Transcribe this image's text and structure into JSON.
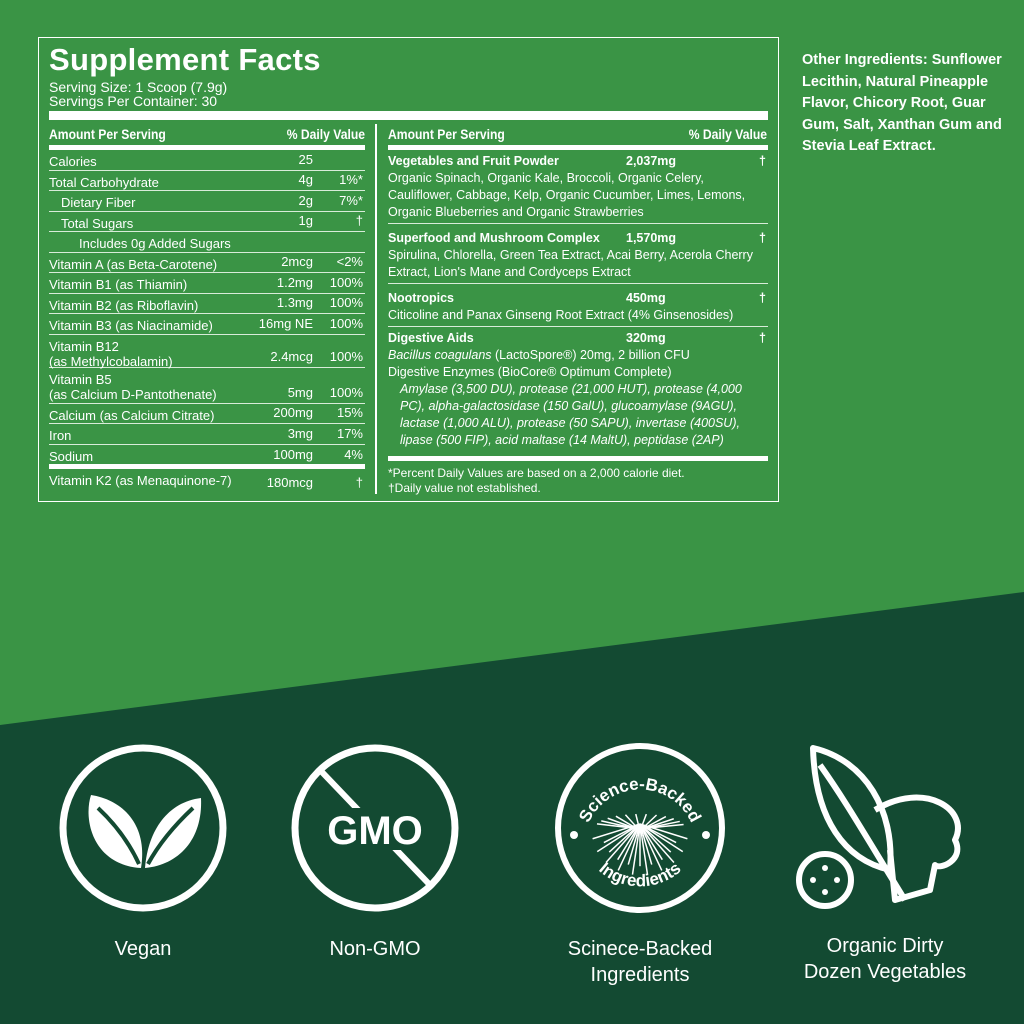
{
  "colors": {
    "top_bg": "#3a9445",
    "bottom_bg": "#134a32",
    "text": "#ffffff"
  },
  "facts": {
    "title": "Supplement Facts",
    "serving_size": "Serving Size: 1 Scoop (7.9g)",
    "servings_per_container": "Servings Per Container: 30",
    "header_amount": "Amount Per Serving",
    "header_dv": "% Daily Value",
    "left_rows": [
      {
        "name": "Calories",
        "amount": "25",
        "dv": ""
      },
      {
        "name": "Total Carbohydrate",
        "amount": "4g",
        "dv": "1%*"
      },
      {
        "name": "Dietary Fiber",
        "amount": "2g",
        "dv": "7%*"
      },
      {
        "name": "Total Sugars",
        "amount": "1g",
        "dv": "†"
      },
      {
        "name": "Includes 0g Added Sugars",
        "amount": "",
        "dv": ""
      },
      {
        "name": "Vitamin A (as Beta-Carotene)",
        "amount": "2mcg",
        "dv": "<2%"
      },
      {
        "name": "Vitamin B1 (as Thiamin)",
        "amount": "1.2mg",
        "dv": "100%"
      },
      {
        "name": "Vitamin B2 (as Riboflavin)",
        "amount": "1.3mg",
        "dv": "100%"
      },
      {
        "name": "Vitamin B3 (as Niacinamide)",
        "amount": "16mg NE",
        "dv": "100%"
      },
      {
        "name": "Vitamin B12\n(as Methylcobalamin)",
        "amount": "2.4mcg",
        "dv": "100%"
      },
      {
        "name": "Vitamin B5\n(as Calcium D-Pantothenate)",
        "amount": "5mg",
        "dv": "100%"
      },
      {
        "name": "Calcium (as Calcium Citrate)",
        "amount": "200mg",
        "dv": "15%"
      },
      {
        "name": "Iron",
        "amount": "3mg",
        "dv": "17%"
      },
      {
        "name": "Sodium",
        "amount": "100mg",
        "dv": "4%"
      },
      {
        "name": "Vitamin K2 (as Menaquinone-7)",
        "amount": "180mcg",
        "dv": "†"
      }
    ],
    "blends": [
      {
        "name": "Vegetables and Fruit Powder",
        "amount": "2,037mg",
        "dv": "†",
        "desc": "Organic Spinach, Organic Kale, Broccoli, Organic Celery, Cauliflower, Cabbage, Kelp, Organic Cucumber, Limes, Lemons, Organic Blueberries and Organic Strawberries"
      },
      {
        "name": "Superfood and Mushroom Complex",
        "amount": "1,570mg",
        "dv": "†",
        "desc": "Spirulina, Chlorella, Green Tea Extract, Acai Berry, Acerola Cherry Extract, Lion's Mane and Cordyceps Extract"
      },
      {
        "name": "Nootropics",
        "amount": "450mg",
        "dv": "†",
        "desc": "Citicoline and Panax Ginseng Root Extract (4% Ginsenosides)"
      },
      {
        "name": "Digestive Aids",
        "amount": "320mg",
        "dv": "†",
        "desc_italic": "Bacillus coagulans",
        "desc_rest": " (LactoSpore®) 20mg, 2 billion CFU",
        "desc2": "Digestive Enzymes (BioCore® Optimum Complete)",
        "desc3": "Amylase (3,500 DU), protease (21,000 HUT), protease (4,000 PC), alpha-galactosidase (150 GalU), glucoamylase (9AGU), lactase (1,000 ALU), protease (50 SAPU), invertase (400SU), lipase (500 FIP), acid maltase (14 MaltU), peptidase (2AP)"
      }
    ],
    "footnote1": "*Percent Daily Values are based on a 2,000 calorie diet.",
    "footnote2": "†Daily value not established."
  },
  "other_ingredients": "Other Ingredients: Sunflower Lecithin, Natural Pineapple Flavor, Chicory Root, Guar Gum, Salt, Xanthan Gum and Stevia Leaf Extract.",
  "badges": [
    {
      "icon": "leaf-icon",
      "label": "Vegan"
    },
    {
      "icon": "no-gmo-icon",
      "text": "GMO",
      "label": "Non-GMO"
    },
    {
      "icon": "science-backed-seal-icon",
      "seal_top": "Science-Backed",
      "seal_bottom": "Ingredients",
      "label": "Scinece-Backed\nIngredients"
    },
    {
      "icon": "vegetables-icon",
      "label": "Organic Dirty\nDozen Vegetables"
    }
  ]
}
